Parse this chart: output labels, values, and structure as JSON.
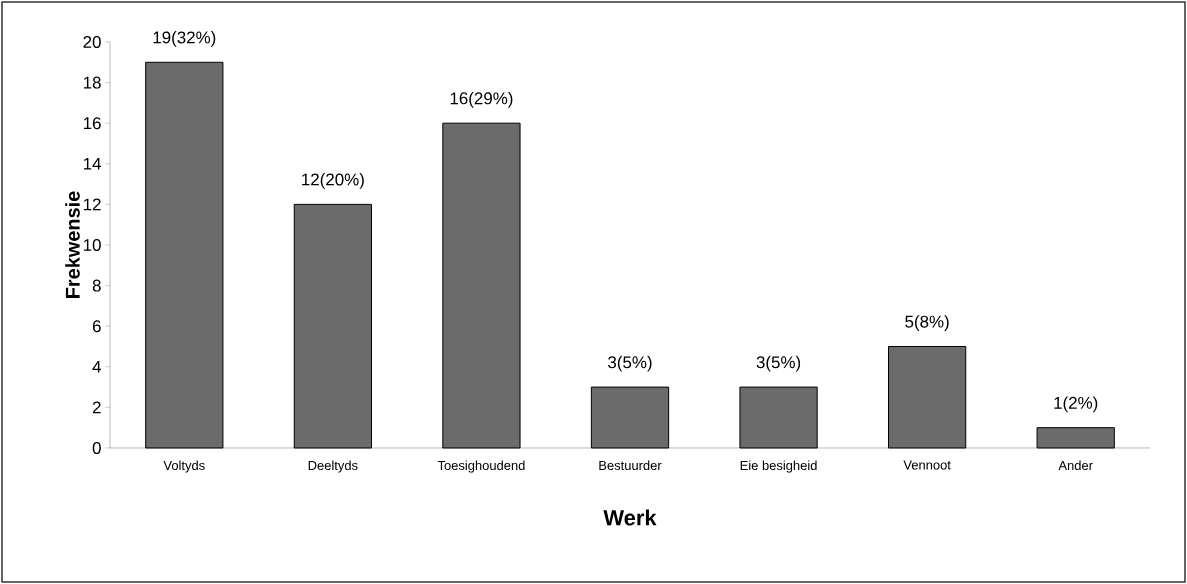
{
  "chart_data": {
    "type": "bar",
    "xlabel": "Werk",
    "ylabel": "Frekwensie",
    "categories": [
      "Voltyds",
      "Deeltyds",
      "Toesighoudend",
      "Bestuurder",
      "Eie besigheid",
      "Vennoot",
      "Ander"
    ],
    "values": [
      19,
      12,
      16,
      3,
      3,
      5,
      1
    ],
    "value_labels": [
      "19(32%)",
      "12(20%)",
      "16(29%)",
      "3(5%)",
      "3(5%)",
      "5(8%)",
      "1(2%)"
    ],
    "color": "#6b6b6b",
    "ylim": [
      0,
      20
    ],
    "yticks": [
      0,
      2,
      4,
      6,
      8,
      10,
      12,
      14,
      16,
      18,
      20
    ]
  }
}
